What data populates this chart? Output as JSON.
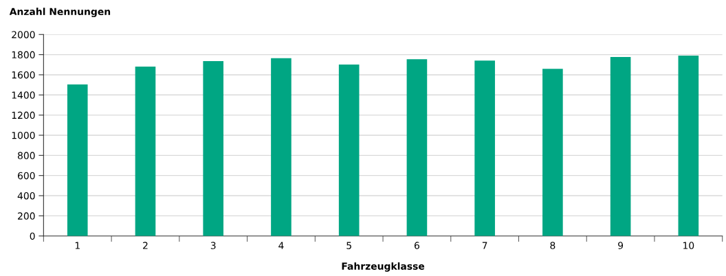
{
  "chart_data": {
    "type": "bar",
    "ylabel": "Anzahl Nennungen",
    "xlabel": "Fahrzeugklasse",
    "categories": [
      "1",
      "2",
      "3",
      "4",
      "5",
      "6",
      "7",
      "8",
      "9",
      "10"
    ],
    "values": [
      1505,
      1682,
      1736,
      1765,
      1701,
      1755,
      1741,
      1659,
      1776,
      1791
    ],
    "color": "#00a683",
    "ylim": [
      0,
      2000
    ],
    "yticks": [
      0,
      200,
      400,
      600,
      800,
      1000,
      1200,
      1400,
      1600,
      1800,
      2000
    ],
    "grid": "y",
    "legend": false
  }
}
